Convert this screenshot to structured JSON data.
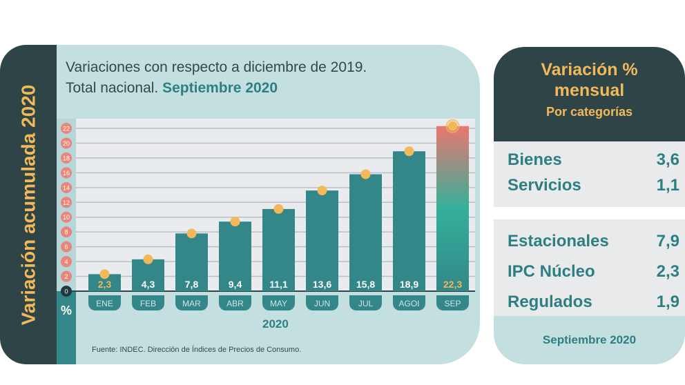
{
  "side_title": "Variación acumulada 2020",
  "title_line1": "Variaciones con respecto a diciembre de 2019.",
  "title_line2_prefix": "Total nacional.",
  "title_line2_bold": "Septiembre 2020",
  "unit_label": "%",
  "source": "Fuente: INDEC. Dirección de Índices de Precios de Consumo.",
  "chart_data": {
    "type": "bar",
    "categories": [
      "ENE",
      "FEB",
      "MAR",
      "ABR",
      "MAY",
      "JUN",
      "JUL",
      "AGOI",
      "SEP"
    ],
    "values": [
      2.3,
      4.3,
      7.8,
      9.4,
      11.1,
      13.6,
      15.8,
      18.9,
      22.3
    ],
    "value_labels": [
      "2,3",
      "4,3",
      "7,8",
      "9,4",
      "11,1",
      "13,6",
      "15,8",
      "18,9",
      "22,3"
    ],
    "xlabel": "2020",
    "ylabel": "%",
    "ylim": [
      0,
      22
    ],
    "yticks": [
      0,
      2,
      4,
      6,
      8,
      10,
      12,
      14,
      16,
      18,
      20,
      22
    ],
    "grid": true,
    "colors": {
      "bar": "#338789",
      "highlight_top": "#e9776e",
      "highlight_mid": "#35b09a",
      "dot": "#f1b95a",
      "tick": "#e9857a"
    }
  },
  "monthly": {
    "title": "Variación %",
    "title2": "mensual",
    "subtitle": "Por categorías",
    "group1": [
      {
        "label": "Bienes",
        "value": "3,6"
      },
      {
        "label": "Servicios",
        "value": "1,1"
      }
    ],
    "group2": [
      {
        "label": "Estacionales",
        "value": "7,9"
      },
      {
        "label": "IPC Núcleo",
        "value": "2,3"
      },
      {
        "label": "Regulados",
        "value": "1,9"
      }
    ],
    "footer": "Septiembre 2020"
  }
}
